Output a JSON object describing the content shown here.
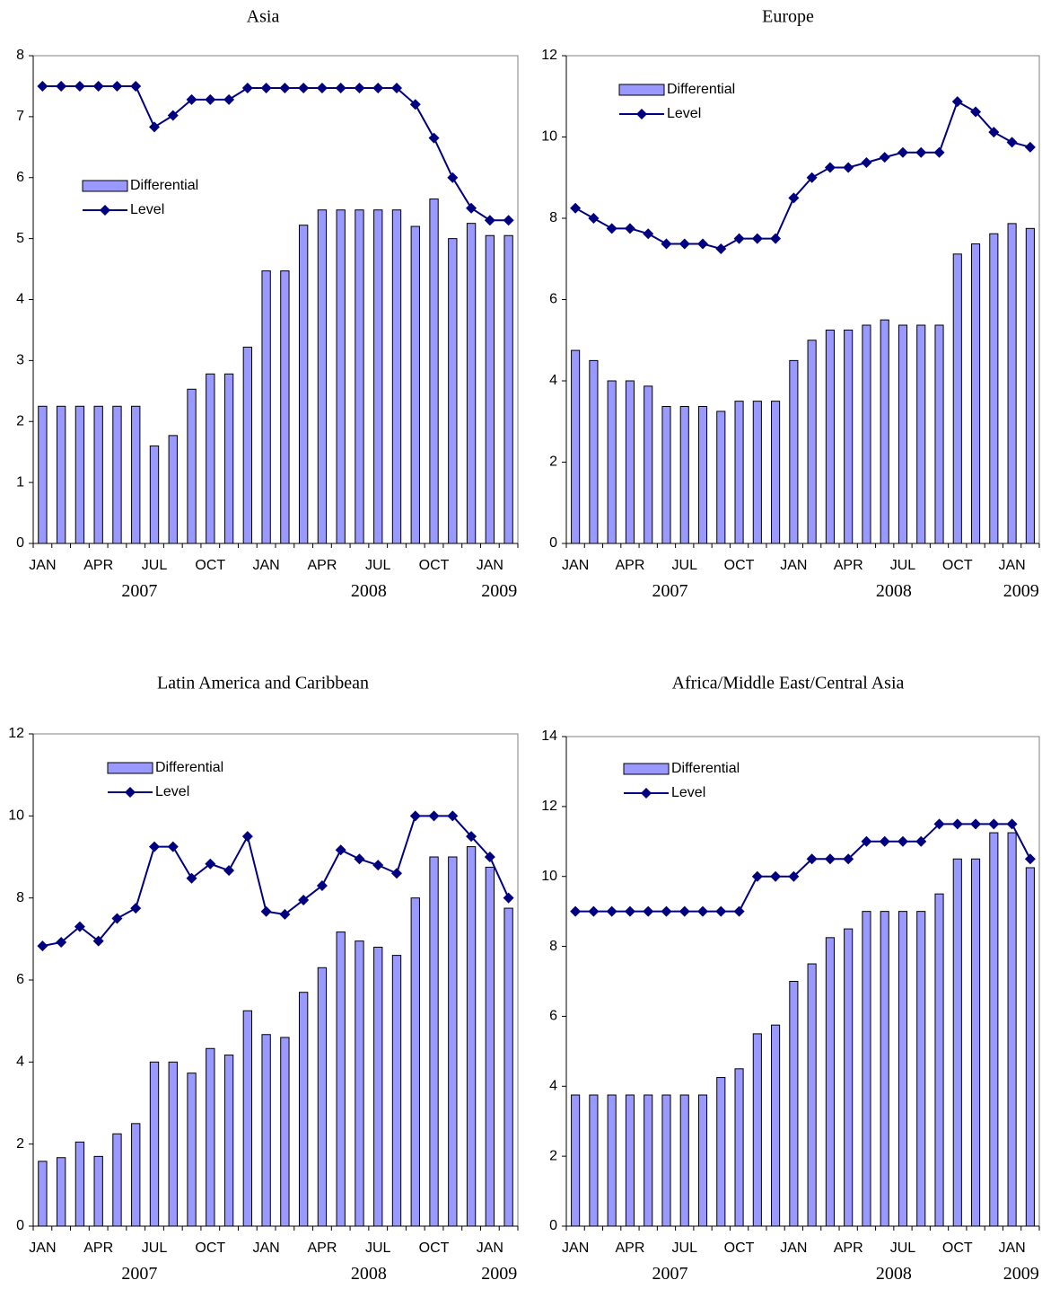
{
  "chart_data": [
    {
      "type": "bar",
      "title": "Asia",
      "categories": [
        "JAN",
        null,
        null,
        "APR",
        null,
        null,
        "JUL",
        null,
        null,
        "OCT",
        null,
        null,
        "JAN",
        null,
        null,
        "APR",
        null,
        null,
        "JUL",
        null,
        null,
        "OCT",
        null,
        null,
        "JAN",
        null
      ],
      "years": [
        "2007",
        "2008",
        "2009"
      ],
      "ylim": [
        0,
        8
      ],
      "yticks": [
        0,
        1,
        2,
        3,
        4,
        5,
        6,
        7,
        8
      ],
      "series": [
        {
          "name": "Differential",
          "kind": "bar",
          "color": "#9999ff",
          "values": [
            2.25,
            2.25,
            2.25,
            2.25,
            2.25,
            2.25,
            1.6,
            1.77,
            2.53,
            2.78,
            2.78,
            3.22,
            4.47,
            4.47,
            5.22,
            5.47,
            5.47,
            5.47,
            5.47,
            5.47,
            5.2,
            5.65,
            5.0,
            5.25,
            5.05,
            5.05
          ]
        },
        {
          "name": "Level",
          "kind": "line",
          "color": "#000080",
          "values": [
            7.5,
            7.5,
            7.5,
            7.5,
            7.5,
            7.5,
            6.83,
            7.02,
            7.28,
            7.28,
            7.28,
            7.47,
            7.47,
            7.47,
            7.47,
            7.47,
            7.47,
            7.47,
            7.47,
            7.47,
            7.2,
            6.65,
            6.0,
            5.5,
            5.3,
            5.3
          ]
        }
      ]
    },
    {
      "type": "bar",
      "title": "Europe",
      "categories": [
        "JAN",
        null,
        null,
        "APR",
        null,
        null,
        "JUL",
        null,
        null,
        "OCT",
        null,
        null,
        "JAN",
        null,
        null,
        "APR",
        null,
        null,
        "JUL",
        null,
        null,
        "OCT",
        null,
        null,
        "JAN",
        null
      ],
      "years": [
        "2007",
        "2008",
        "2009"
      ],
      "ylim": [
        0,
        12
      ],
      "yticks": [
        0,
        2,
        4,
        6,
        8,
        10,
        12
      ],
      "series": [
        {
          "name": "Differential",
          "kind": "bar",
          "color": "#9999ff",
          "values": [
            4.75,
            4.5,
            4.0,
            4.0,
            3.87,
            3.37,
            3.37,
            3.37,
            3.25,
            3.5,
            3.5,
            3.5,
            4.5,
            5.0,
            5.25,
            5.25,
            5.37,
            5.5,
            5.37,
            5.37,
            5.37,
            7.12,
            7.37,
            7.62,
            7.87,
            7.75
          ]
        },
        {
          "name": "Level",
          "kind": "line",
          "color": "#000080",
          "values": [
            8.25,
            8.0,
            7.75,
            7.75,
            7.62,
            7.37,
            7.37,
            7.37,
            7.25,
            7.5,
            7.5,
            7.5,
            8.5,
            9.0,
            9.25,
            9.25,
            9.37,
            9.5,
            9.62,
            9.62,
            9.62,
            10.87,
            10.62,
            10.12,
            9.87,
            9.75
          ]
        }
      ]
    },
    {
      "type": "bar",
      "title": "Latin America and Caribbean",
      "categories": [
        "JAN",
        null,
        null,
        "APR",
        null,
        null,
        "JUL",
        null,
        null,
        "OCT",
        null,
        null,
        "JAN",
        null,
        null,
        "APR",
        null,
        null,
        "JUL",
        null,
        null,
        "OCT",
        null,
        null,
        "JAN",
        null
      ],
      "years": [
        "2007",
        "2008",
        "2009"
      ],
      "ylim": [
        0,
        12
      ],
      "yticks": [
        0,
        2,
        4,
        6,
        8,
        10,
        12
      ],
      "series": [
        {
          "name": "Differential",
          "kind": "bar",
          "color": "#9999ff",
          "values": [
            1.58,
            1.67,
            2.05,
            1.7,
            2.25,
            2.5,
            4.0,
            4.0,
            3.73,
            4.33,
            4.17,
            5.25,
            4.67,
            4.6,
            5.7,
            6.3,
            7.17,
            6.95,
            6.8,
            6.6,
            8.0,
            9.0,
            9.0,
            9.25,
            8.75,
            7.75
          ]
        },
        {
          "name": "Level",
          "kind": "line",
          "color": "#000080",
          "values": [
            6.83,
            6.92,
            7.3,
            6.95,
            7.5,
            7.75,
            9.25,
            9.25,
            8.48,
            8.83,
            8.67,
            9.5,
            7.67,
            7.6,
            7.95,
            8.3,
            9.17,
            8.95,
            8.8,
            8.6,
            10.0,
            10.0,
            10.0,
            9.5,
            9.0,
            8.0
          ]
        }
      ]
    },
    {
      "type": "bar",
      "title": "Africa/Middle East/Central Asia",
      "categories": [
        "JAN",
        null,
        null,
        "APR",
        null,
        null,
        "JUL",
        null,
        null,
        "OCT",
        null,
        null,
        "JAN",
        null,
        null,
        "APR",
        null,
        null,
        "JUL",
        null,
        null,
        "OCT",
        null,
        null,
        "JAN",
        null
      ],
      "years": [
        "2007",
        "2008",
        "2009"
      ],
      "ylim": [
        0,
        14
      ],
      "yticks": [
        0,
        2,
        4,
        6,
        8,
        10,
        12,
        14
      ],
      "series": [
        {
          "name": "Differential",
          "kind": "bar",
          "color": "#9999ff",
          "values": [
            3.75,
            3.75,
            3.75,
            3.75,
            3.75,
            3.75,
            3.75,
            3.75,
            4.25,
            4.5,
            5.5,
            5.75,
            7.0,
            7.5,
            8.25,
            8.5,
            9.0,
            9.0,
            9.0,
            9.0,
            9.5,
            10.5,
            10.5,
            11.25,
            11.25,
            10.25
          ]
        },
        {
          "name": "Level",
          "kind": "line",
          "color": "#000080",
          "values": [
            9,
            9,
            9,
            9,
            9,
            9,
            9,
            9,
            9,
            9,
            10,
            10,
            10,
            10.5,
            10.5,
            10.5,
            11,
            11,
            11,
            11,
            11.5,
            11.5,
            11.5,
            11.5,
            11.5,
            10.5
          ]
        }
      ]
    }
  ]
}
